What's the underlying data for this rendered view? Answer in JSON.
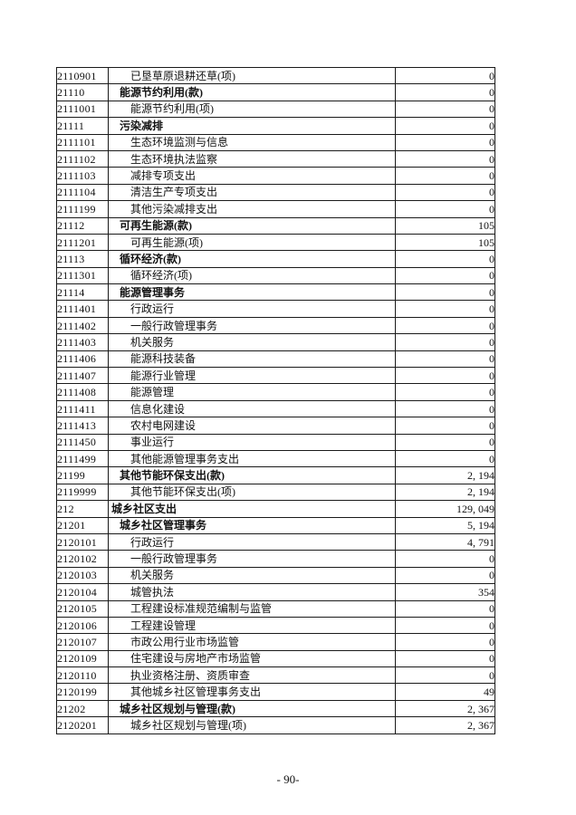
{
  "page": {
    "number_label": "- 90-"
  },
  "table": {
    "rows": [
      {
        "code": "2110901",
        "name": "已垦草原退耕还草(项)",
        "amount": "0",
        "level": 2,
        "bold": false
      },
      {
        "code": "21110",
        "name": "能源节约利用(款)",
        "amount": "0",
        "level": 1,
        "bold": true
      },
      {
        "code": "2111001",
        "name": "能源节约利用(项)",
        "amount": "0",
        "level": 2,
        "bold": false
      },
      {
        "code": "21111",
        "name": "污染减排",
        "amount": "0",
        "level": 1,
        "bold": true
      },
      {
        "code": "2111101",
        "name": "生态环境监测与信息",
        "amount": "0",
        "level": 2,
        "bold": false
      },
      {
        "code": "2111102",
        "name": "生态环境执法监察",
        "amount": "0",
        "level": 2,
        "bold": false
      },
      {
        "code": "2111103",
        "name": "减排专项支出",
        "amount": "0",
        "level": 2,
        "bold": false
      },
      {
        "code": "2111104",
        "name": "清洁生产专项支出",
        "amount": "0",
        "level": 2,
        "bold": false
      },
      {
        "code": "2111199",
        "name": "其他污染减排支出",
        "amount": "0",
        "level": 2,
        "bold": false
      },
      {
        "code": "21112",
        "name": "可再生能源(款)",
        "amount": "105",
        "level": 1,
        "bold": true
      },
      {
        "code": "2111201",
        "name": "可再生能源(项)",
        "amount": "105",
        "level": 2,
        "bold": false
      },
      {
        "code": "21113",
        "name": "循环经济(款)",
        "amount": "0",
        "level": 1,
        "bold": true
      },
      {
        "code": "2111301",
        "name": "循环经济(项)",
        "amount": "0",
        "level": 2,
        "bold": false
      },
      {
        "code": "21114",
        "name": "能源管理事务",
        "amount": "0",
        "level": 1,
        "bold": true
      },
      {
        "code": "2111401",
        "name": "行政运行",
        "amount": "0",
        "level": 2,
        "bold": false
      },
      {
        "code": "2111402",
        "name": "一般行政管理事务",
        "amount": "0",
        "level": 2,
        "bold": false
      },
      {
        "code": "2111403",
        "name": "机关服务",
        "amount": "0",
        "level": 2,
        "bold": false
      },
      {
        "code": "2111406",
        "name": "能源科技装备",
        "amount": "0",
        "level": 2,
        "bold": false
      },
      {
        "code": "2111407",
        "name": "能源行业管理",
        "amount": "0",
        "level": 2,
        "bold": false
      },
      {
        "code": "2111408",
        "name": "能源管理",
        "amount": "0",
        "level": 2,
        "bold": false
      },
      {
        "code": "2111411",
        "name": "信息化建设",
        "amount": "0",
        "level": 2,
        "bold": false
      },
      {
        "code": "2111413",
        "name": "农村电网建设",
        "amount": "0",
        "level": 2,
        "bold": false
      },
      {
        "code": "2111450",
        "name": "事业运行",
        "amount": "0",
        "level": 2,
        "bold": false
      },
      {
        "code": "2111499",
        "name": "其他能源管理事务支出",
        "amount": "0",
        "level": 2,
        "bold": false
      },
      {
        "code": "21199",
        "name": "其他节能环保支出(款)",
        "amount": "2, 194",
        "level": 1,
        "bold": true
      },
      {
        "code": "2119999",
        "name": "其他节能环保支出(项)",
        "amount": "2, 194",
        "level": 2,
        "bold": false
      },
      {
        "code": "212",
        "name": "城乡社区支出",
        "amount": "129, 049",
        "level": 0,
        "bold": true
      },
      {
        "code": "21201",
        "name": "城乡社区管理事务",
        "amount": "5, 194",
        "level": 1,
        "bold": true
      },
      {
        "code": "2120101",
        "name": "行政运行",
        "amount": "4, 791",
        "level": 2,
        "bold": false
      },
      {
        "code": "2120102",
        "name": "一般行政管理事务",
        "amount": "0",
        "level": 2,
        "bold": false
      },
      {
        "code": "2120103",
        "name": "机关服务",
        "amount": "0",
        "level": 2,
        "bold": false
      },
      {
        "code": "2120104",
        "name": "城管执法",
        "amount": "354",
        "level": 2,
        "bold": false
      },
      {
        "code": "2120105",
        "name": "工程建设标准规范编制与监管",
        "amount": "0",
        "level": 2,
        "bold": false
      },
      {
        "code": "2120106",
        "name": "工程建设管理",
        "amount": "0",
        "level": 2,
        "bold": false
      },
      {
        "code": "2120107",
        "name": "市政公用行业市场监管",
        "amount": "0",
        "level": 2,
        "bold": false
      },
      {
        "code": "2120109",
        "name": "住宅建设与房地产市场监管",
        "amount": "0",
        "level": 2,
        "bold": false
      },
      {
        "code": "2120110",
        "name": "执业资格注册、资质审查",
        "amount": "0",
        "level": 2,
        "bold": false
      },
      {
        "code": "2120199",
        "name": "其他城乡社区管理事务支出",
        "amount": "49",
        "level": 2,
        "bold": false
      },
      {
        "code": "21202",
        "name": "城乡社区规划与管理(款)",
        "amount": "2, 367",
        "level": 1,
        "bold": true
      },
      {
        "code": "2120201",
        "name": "城乡社区规划与管理(项)",
        "amount": "2, 367",
        "level": 2,
        "bold": false
      }
    ]
  }
}
